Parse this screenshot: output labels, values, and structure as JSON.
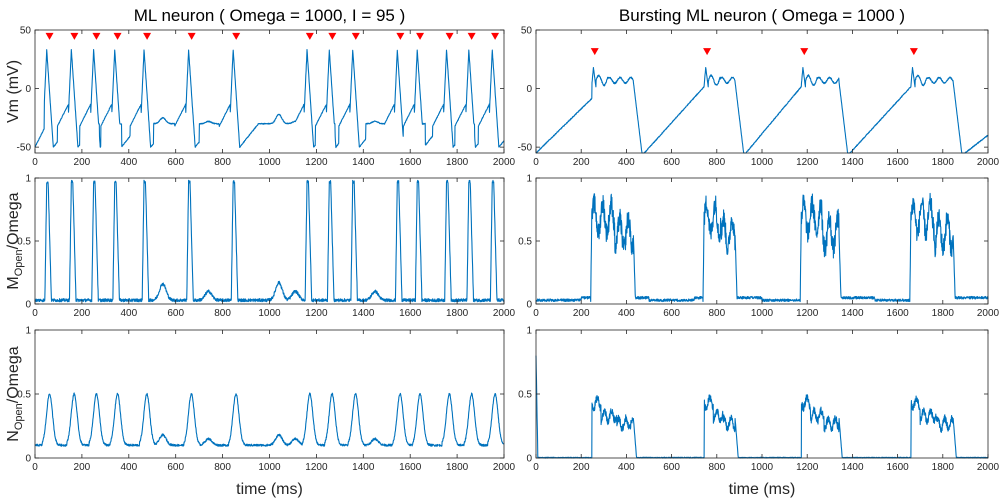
{
  "colors": {
    "trace": "#0072BD",
    "marker": "#ff0000",
    "axis": "#262626"
  },
  "chart_data": [
    {
      "type": "line",
      "id": "left-vm",
      "title": "ML neuron ( Omega = 1000, I = 95 )",
      "ylabel": "Vm (mV)",
      "xlabel": "",
      "xlim": [
        0,
        2000
      ],
      "ylim": [
        -55,
        50
      ],
      "xticks": [
        0,
        200,
        400,
        600,
        800,
        1000,
        1200,
        1400,
        1600,
        1800,
        2000
      ],
      "yticks": [
        -50,
        0,
        50
      ],
      "grid": false,
      "baseline": -50,
      "rest_plateau": -30,
      "spike_peak": 33,
      "spike_times": [
        50,
        155,
        250,
        340,
        465,
        655,
        845,
        1160,
        1255,
        1355,
        1545,
        1630,
        1755,
        1850,
        1950
      ],
      "subthreshold_bumps": [
        [
          545,
          -25
        ],
        [
          740,
          -28
        ],
        [
          1040,
          -22
        ],
        [
          1110,
          -28
        ],
        [
          1450,
          -28
        ]
      ],
      "spike_markers": [
        62,
        168,
        262,
        352,
        478,
        668,
        858,
        1172,
        1268,
        1368,
        1558,
        1642,
        1768,
        1862,
        1962
      ],
      "marker_y": 45
    },
    {
      "type": "line",
      "id": "right-vm",
      "title": "Bursting ML neuron ( Omega = 1000 )",
      "ylabel": "",
      "xlabel": "",
      "xlim": [
        0,
        2000
      ],
      "ylim": [
        -55,
        50
      ],
      "xticks": [
        0,
        200,
        400,
        600,
        800,
        1000,
        1200,
        1400,
        1600,
        1800,
        2000
      ],
      "yticks": [
        -50,
        0,
        50
      ],
      "grid": false,
      "burst_starts": [
        248,
        745,
        1175,
        1660
      ],
      "burst_ends": [
        430,
        880,
        1340,
        1845
      ],
      "burst_peak": 18,
      "burst_plateau": 7,
      "trough": -57,
      "spike_markers": [
        260,
        757,
        1187,
        1672
      ],
      "marker_y": 32
    },
    {
      "type": "line",
      "id": "left-m",
      "title": "",
      "ylabel": "M_Open/Omega",
      "xlabel": "",
      "xlim": [
        0,
        2000
      ],
      "ylim": [
        0,
        1
      ],
      "xticks": [
        0,
        200,
        400,
        600,
        800,
        1000,
        1200,
        1400,
        1600,
        1800,
        2000
      ],
      "yticks": [
        0,
        0.5,
        1
      ],
      "grid": false,
      "spike_times": [
        50,
        155,
        250,
        340,
        465,
        655,
        845,
        1160,
        1255,
        1355,
        1545,
        1630,
        1755,
        1850,
        1950
      ],
      "peak": 0.97,
      "baseline": 0.03,
      "bumps": [
        [
          545,
          0.16
        ],
        [
          740,
          0.1
        ],
        [
          1040,
          0.17
        ],
        [
          1110,
          0.1
        ],
        [
          1450,
          0.1
        ]
      ]
    },
    {
      "type": "line",
      "id": "right-m",
      "title": "",
      "ylabel": "",
      "xlabel": "",
      "xlim": [
        0,
        2000
      ],
      "ylim": [
        0,
        1
      ],
      "xticks": [
        0,
        200,
        400,
        600,
        800,
        1000,
        1200,
        1400,
        1600,
        1800,
        2000
      ],
      "yticks": [
        0,
        0.5,
        1
      ],
      "grid": false,
      "burst_starts": [
        248,
        745,
        1175,
        1660
      ],
      "burst_ends": [
        430,
        880,
        1340,
        1845
      ],
      "burst_level": 0.68,
      "baseline": 0.02
    },
    {
      "type": "line",
      "id": "left-n",
      "title": "",
      "ylabel": "N_Open/Omega",
      "xlabel": "time (ms)",
      "xlim": [
        0,
        2000
      ],
      "ylim": [
        0,
        1
      ],
      "xticks": [
        0,
        200,
        400,
        600,
        800,
        1000,
        1200,
        1400,
        1600,
        1800,
        2000
      ],
      "yticks": [
        0,
        0.5,
        1
      ],
      "grid": false,
      "spike_times": [
        50,
        155,
        250,
        340,
        465,
        655,
        845,
        1160,
        1255,
        1355,
        1545,
        1630,
        1755,
        1850,
        1950
      ],
      "peak": 0.5,
      "baseline": 0.1,
      "bumps": [
        [
          545,
          0.18
        ],
        [
          740,
          0.15
        ],
        [
          1040,
          0.18
        ],
        [
          1110,
          0.15
        ],
        [
          1450,
          0.15
        ]
      ]
    },
    {
      "type": "line",
      "id": "right-n",
      "title": "",
      "ylabel": "",
      "xlabel": "time (ms)",
      "xlim": [
        0,
        2000
      ],
      "ylim": [
        0,
        1
      ],
      "xticks": [
        0,
        200,
        400,
        600,
        800,
        1000,
        1200,
        1400,
        1600,
        1800,
        2000
      ],
      "yticks": [
        0,
        0.5,
        1
      ],
      "grid": false,
      "burst_starts": [
        248,
        745,
        1175,
        1660
      ],
      "burst_ends": [
        430,
        880,
        1340,
        1845
      ],
      "burst_level": 0.33,
      "burst_peak": 0.43,
      "baseline": 0.0,
      "initial_value": 0.8
    }
  ]
}
